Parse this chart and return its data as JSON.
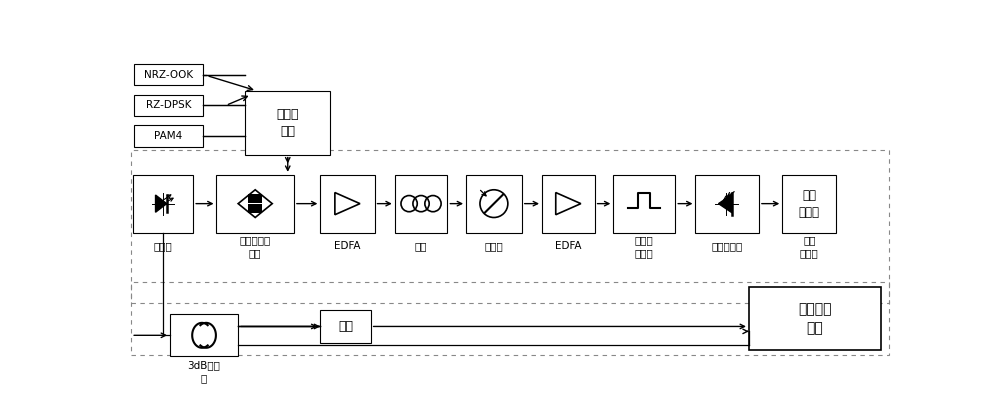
{
  "bg_color": "#ffffff",
  "line_color": "#000000",
  "box_edge": "#000000",
  "text_color": "#000000",
  "fig_w": 10.0,
  "fig_h": 4.04,
  "signal_labels": [
    "NRZ-OOK",
    "RZ-DPSK",
    "PAM4"
  ],
  "pulse_gen_label": "脉冲发\n生器",
  "top_box_labels": [
    "激光器",
    "马赫曾德调\n制器",
    "EDFA",
    "光纤",
    "衰减器",
    "EDFA",
    "光带通\n滤波器",
    "光电探测器",
    "低通\n滤波器"
  ],
  "coupler_label": "3dB耦合\n器",
  "delay_label": "延时",
  "offline_label": "离线数据\n处理"
}
